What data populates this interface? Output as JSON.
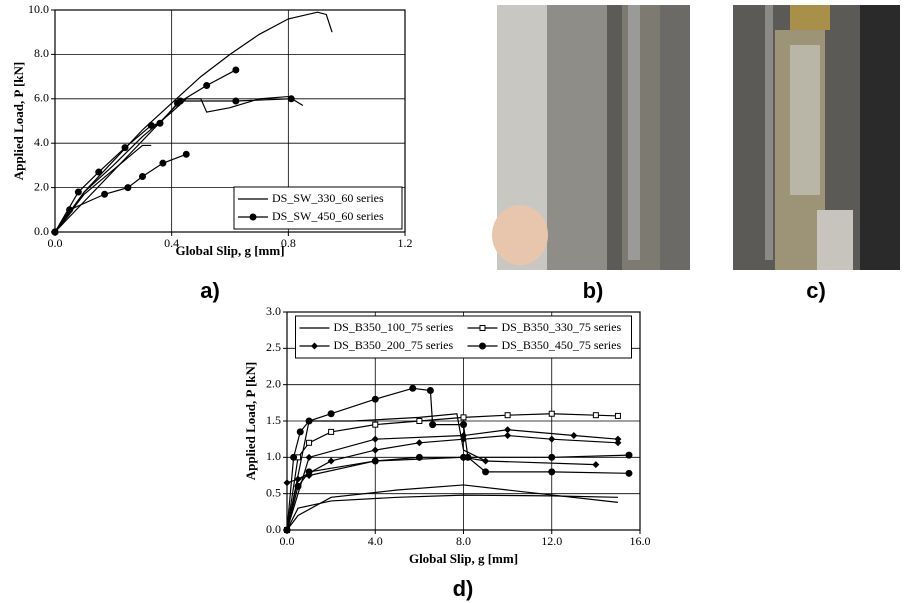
{
  "chart_data": [
    {
      "type": "line",
      "panel_label": "a)",
      "xlabel": "Global Slip, g [mm]",
      "ylabel": "Applied Load, P [kN]",
      "xlim": [
        0,
        1.2
      ],
      "ylim": [
        0,
        10
      ],
      "xticks": [
        {
          "value": 0,
          "label": "0.0"
        },
        0.4,
        0.8,
        1.2
      ],
      "yticks": [
        {
          "value": 0,
          "label": "0.0"
        },
        {
          "value": 2,
          "label": "2.0"
        },
        {
          "value": 4,
          "label": "4.0"
        },
        {
          "value": 6,
          "label": "6.0"
        },
        {
          "value": 8,
          "label": "8.0"
        },
        {
          "value": 10,
          "label": "10.0"
        }
      ],
      "grid": true,
      "legend": "lower right",
      "legend_columns": 1,
      "series": [
        {
          "name": "DS_SW_330_60 series",
          "color": "#000000",
          "marker": "none",
          "curves": [
            {
              "x": [
                0,
                0.05,
                0.1,
                0.2,
                0.3,
                0.4,
                0.5,
                0.6,
                0.7,
                0.8,
                0.9,
                0.93,
                0.95
              ],
              "values": [
                0,
                0.8,
                1.8,
                3.2,
                4.6,
                5.8,
                7.0,
                8.0,
                8.9,
                9.6,
                9.9,
                9.8,
                9.0
              ]
            },
            {
              "x": [
                0,
                0.1,
                0.2,
                0.3,
                0.4,
                0.45,
                0.5,
                0.52,
                0.6,
                0.7,
                0.8,
                0.85
              ],
              "values": [
                0,
                1.8,
                3.0,
                4.3,
                5.4,
                6.0,
                6.0,
                5.4,
                5.6,
                6.0,
                6.1,
                5.7
              ]
            },
            {
              "x": [
                0,
                0.1,
                0.2,
                0.3,
                0.33
              ],
              "values": [
                0,
                1.7,
                2.8,
                3.9,
                3.9
              ]
            }
          ]
        },
        {
          "name": "DS_SW_450_60 series",
          "color": "#000000",
          "marker": "circle",
          "curves": [
            {
              "x": [
                0,
                0.05,
                0.17,
                0.25,
                0.3,
                0.37,
                0.45
              ],
              "values": [
                0,
                1.0,
                1.7,
                2.0,
                2.5,
                3.1,
                3.5
              ]
            },
            {
              "x": [
                0,
                0.08,
                0.15,
                0.24,
                0.33,
                0.36,
                0.42,
                0.52,
                0.62
              ],
              "values": [
                0,
                1.8,
                2.7,
                3.8,
                4.8,
                4.9,
                5.8,
                6.6,
                7.3
              ]
            },
            {
              "x": [
                0,
                0.43,
                0.62,
                0.81
              ],
              "values": [
                0,
                5.9,
                5.9,
                6.0
              ]
            }
          ]
        }
      ]
    },
    {
      "type": "line",
      "panel_label": "d)",
      "xlabel": "Global Slip, g [mm]",
      "ylabel": "Applied Load, P [kN]",
      "xlim": [
        0,
        16
      ],
      "ylim": [
        0,
        3
      ],
      "xticks": [
        {
          "value": 0,
          "label": "0.0"
        },
        {
          "value": 4,
          "label": "4.0"
        },
        {
          "value": 8,
          "label": "8.0"
        },
        {
          "value": 12,
          "label": "12.0"
        },
        {
          "value": 16,
          "label": "16.0"
        }
      ],
      "yticks": [
        {
          "value": 0,
          "label": "0.0"
        },
        0.5,
        {
          "value": 1,
          "label": "1.0"
        },
        1.5,
        {
          "value": 2,
          "label": "2.0"
        },
        2.5,
        {
          "value": 3,
          "label": "3.0"
        }
      ],
      "grid": true,
      "legend": "upper center",
      "legend_columns": 2,
      "series": [
        {
          "name": "DS_B350_100_75 series",
          "color": "#000000",
          "marker": "none",
          "curves": [
            {
              "x": [
                0,
                0.5,
                2,
                5,
                8,
                12,
                15
              ],
              "values": [
                0,
                0.3,
                0.4,
                0.45,
                0.48,
                0.47,
                0.45
              ]
            },
            {
              "x": [
                0,
                0.5,
                2,
                5,
                8,
                10,
                15
              ],
              "values": [
                0,
                0.2,
                0.45,
                0.55,
                0.62,
                0.55,
                0.38
              ]
            },
            {
              "x": [
                0,
                1,
                3,
                6,
                7.7,
                8,
                9
              ],
              "values": [
                0,
                1.5,
                1.5,
                1.55,
                1.6,
                1.1,
                0.95
              ]
            }
          ]
        },
        {
          "name": "DS_B350_330_75 series",
          "color": "#000000",
          "marker": "square",
          "curves": [
            {
              "x": [
                0,
                0.5,
                1,
                2,
                4,
                6,
                8,
                10,
                12,
                14,
                15
              ],
              "values": [
                0,
                1.0,
                1.2,
                1.35,
                1.45,
                1.5,
                1.55,
                1.58,
                1.6,
                1.58,
                1.57
              ]
            }
          ]
        },
        {
          "name": "DS_B350_200_75 series",
          "color": "#000000",
          "marker": "diamond",
          "curves": [
            {
              "x": [
                0,
                0.5,
                2,
                4,
                6,
                8,
                10,
                12,
                15
              ],
              "values": [
                0,
                0.7,
                0.95,
                1.1,
                1.2,
                1.25,
                1.3,
                1.25,
                1.2
              ]
            },
            {
              "x": [
                0,
                1,
                4,
                8,
                10,
                13,
                15
              ],
              "values": [
                0,
                1.0,
                1.25,
                1.3,
                1.38,
                1.3,
                1.25
              ]
            },
            {
              "x": [
                0,
                1,
                4,
                8,
                9,
                14
              ],
              "values": [
                0.65,
                0.75,
                0.95,
                1.0,
                0.95,
                0.9
              ]
            }
          ]
        },
        {
          "name": "DS_B350_450_75 series",
          "color": "#000000",
          "marker": "circle",
          "curves": [
            {
              "x": [
                0,
                0.3,
                0.6,
                1,
                2,
                4,
                5.7,
                6.5,
                6.6,
                8,
                8.2,
                9,
                12,
                15.5
              ],
              "values": [
                0,
                1.0,
                1.35,
                1.5,
                1.6,
                1.8,
                1.95,
                1.92,
                1.45,
                1.45,
                1.0,
                0.8,
                0.8,
                0.78
              ]
            },
            {
              "x": [
                0,
                0.5,
                1,
                4,
                6,
                8,
                12,
                15.5
              ],
              "values": [
                0,
                0.6,
                0.8,
                0.95,
                1.0,
                1.0,
                1.0,
                1.03
              ]
            }
          ]
        }
      ]
    }
  ],
  "figures": [
    {
      "label": "b)"
    },
    {
      "label": "c)"
    }
  ]
}
